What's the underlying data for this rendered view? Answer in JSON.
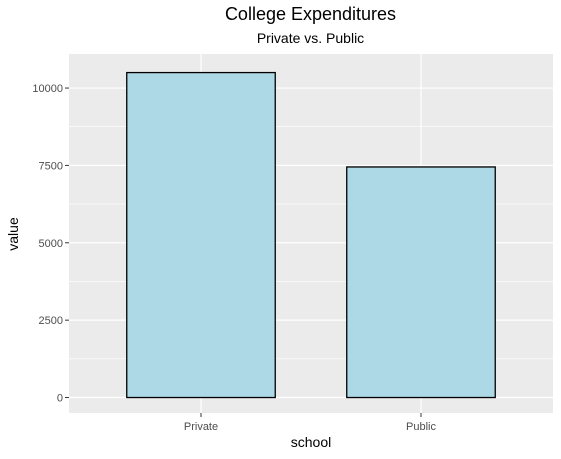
{
  "chart_data": {
    "type": "bar",
    "title": "College Expenditures",
    "subtitle": "Private vs. Public",
    "xlabel": "school",
    "ylabel": "value",
    "categories": [
      "Private",
      "Public"
    ],
    "values": [
      10500,
      7450
    ],
    "ylim": [
      -500,
      11100
    ],
    "yticks": [
      0,
      2500,
      5000,
      7500,
      10000
    ],
    "ytick_labels": [
      "0",
      "2500",
      "5000",
      "7500",
      "10000"
    ],
    "grid": true,
    "legend": "none"
  },
  "colors": {
    "panel_background": "#ebebeb",
    "grid": "#ffffff",
    "bar_fill": "#add8e6",
    "bar_outline": "#000000",
    "tick_text": "#4d4d4d",
    "tick_mark": "#333333"
  }
}
